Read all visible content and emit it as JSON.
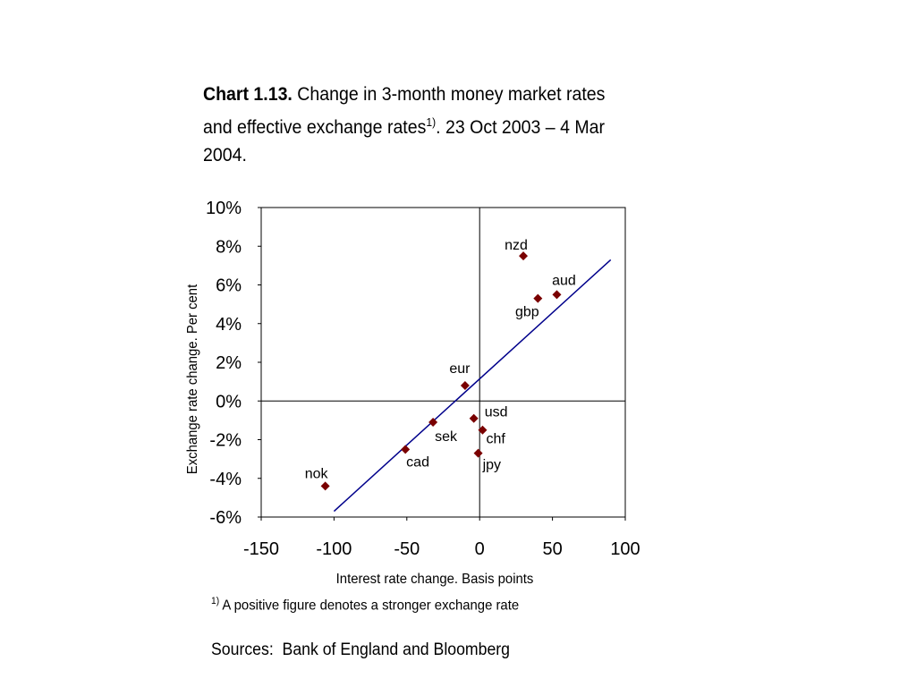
{
  "title": {
    "label": "Chart 1.13.",
    "text_part1": " Change in 3-month money market rates and effective exchange rates",
    "superscript": "1)",
    "text_part2": ". 23 Oct 2003 – 4 Mar 2004."
  },
  "footnote": {
    "marker": "1)",
    "text": " A positive figure denotes a stronger exchange rate"
  },
  "sources": "Sources:  Bank of England and Bloomberg",
  "chart_data": {
    "type": "scatter",
    "xlabel": "Interest rate change. Basis points",
    "ylabel": "Exchange rate change. Per cent",
    "xlim": [
      -150,
      100
    ],
    "ylim": [
      -6,
      10
    ],
    "x_ticks": [
      -150,
      -100,
      -50,
      0,
      50,
      100
    ],
    "y_ticks": [
      -6,
      -4,
      -2,
      0,
      2,
      4,
      6,
      8,
      10
    ],
    "y_tick_labels": [
      "-6%",
      "-4%",
      "-2%",
      "0%",
      "2%",
      "4%",
      "6%",
      "8%",
      "10%"
    ],
    "marker_color": "#7a0000",
    "trendline_color": "#00008b",
    "points": [
      {
        "label": "nzd",
        "x": 30,
        "y": 7.5
      },
      {
        "label": "aud",
        "x": 53,
        "y": 5.5
      },
      {
        "label": "gbp",
        "x": 40,
        "y": 5.3
      },
      {
        "label": "eur",
        "x": -10,
        "y": 0.8
      },
      {
        "label": "usd",
        "x": -4,
        "y": -0.9
      },
      {
        "label": "chf",
        "x": 2,
        "y": -1.5
      },
      {
        "label": "jpy",
        "x": -1,
        "y": -2.7
      },
      {
        "label": "sek",
        "x": -32,
        "y": -1.1
      },
      {
        "label": "cad",
        "x": -51,
        "y": -2.5
      },
      {
        "label": "nok",
        "x": -106,
        "y": -4.4
      }
    ],
    "trendline": {
      "x": [
        -100,
        90
      ],
      "y": [
        -5.7,
        7.3
      ]
    },
    "reference_lines": {
      "x": 0,
      "y": 0
    }
  }
}
